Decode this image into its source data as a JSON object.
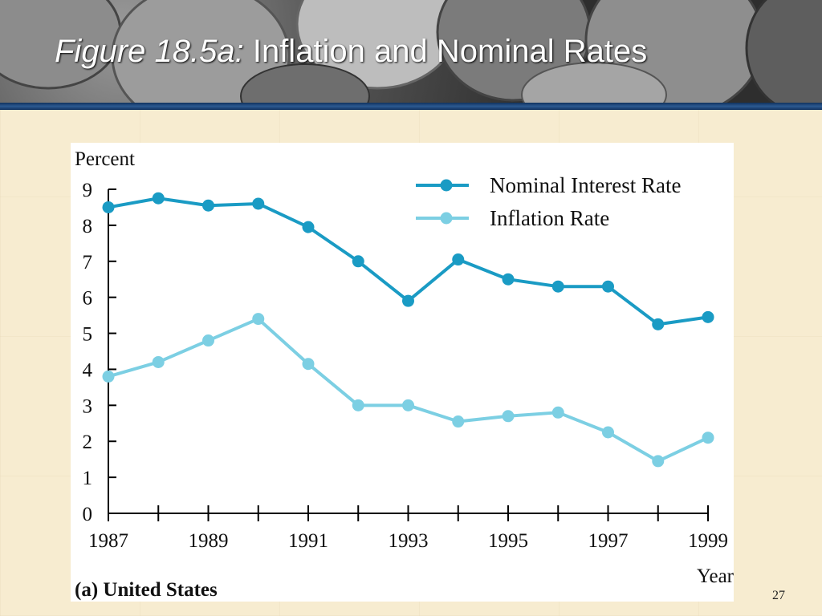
{
  "slide": {
    "title_italic": "Figure 18.5a:",
    "title_rest": "Inflation and Nominal Rates",
    "page_number": "27"
  },
  "colors": {
    "nominal": "#1a9bc4",
    "inflation": "#7ccfe3",
    "axis": "#000000",
    "rule": "#1f4a80"
  },
  "chart_data": {
    "type": "line",
    "title": "",
    "ylabel": "Percent",
    "xlabel": "Year",
    "panel_label": "(a) United States",
    "x": [
      1987,
      1988,
      1989,
      1990,
      1991,
      1992,
      1993,
      1994,
      1995,
      1996,
      1997,
      1998,
      1999
    ],
    "x_tick_labels": [
      "1987",
      "1989",
      "1991",
      "1993",
      "1995",
      "1997",
      "1999"
    ],
    "y_ticks": [
      0,
      1,
      2,
      3,
      4,
      5,
      6,
      7,
      8,
      9
    ],
    "ylim": [
      0,
      9
    ],
    "xlim": [
      1987,
      1999
    ],
    "grid": false,
    "legend_position": "top-right",
    "series": [
      {
        "name": "Nominal Interest Rate",
        "values": [
          8.5,
          8.75,
          8.55,
          8.6,
          7.95,
          7.0,
          5.9,
          7.05,
          6.5,
          6.3,
          6.3,
          5.25,
          5.45
        ]
      },
      {
        "name": "Inflation Rate",
        "values": [
          3.8,
          4.2,
          4.8,
          5.4,
          4.15,
          3.0,
          3.0,
          2.55,
          2.7,
          2.8,
          2.25,
          1.45,
          2.1
        ]
      }
    ]
  }
}
